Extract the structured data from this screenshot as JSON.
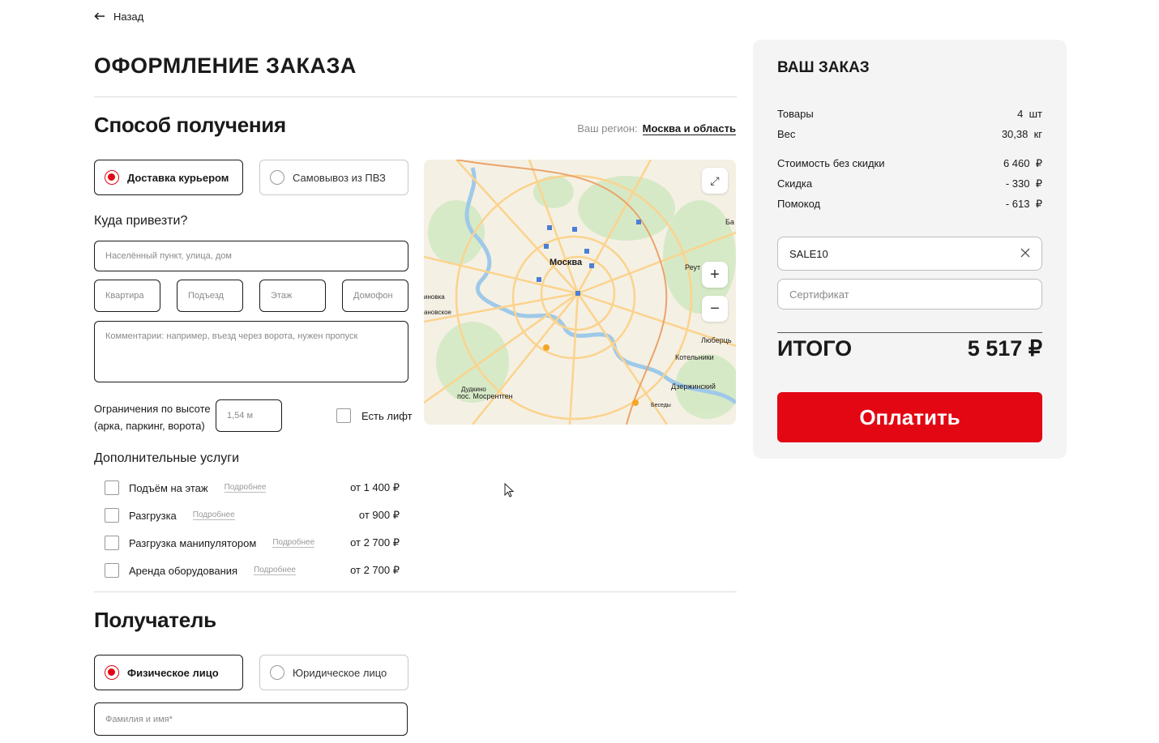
{
  "nav": {
    "back": "Назад"
  },
  "page_title": "ОФОРМЛЕНИЕ ЗАКАЗА",
  "delivery": {
    "heading": "Способ получения",
    "region_label": "Ваш регион:",
    "region_value": "Москва и область",
    "options": [
      {
        "label": "Доставка курьером",
        "selected": true
      },
      {
        "label": "Самовывоз из ПВЗ",
        "selected": false
      }
    ],
    "address_heading": "Куда привезти?",
    "address_placeholder": "Населённый пункт, улица, дом",
    "apartment_placeholder": "Квартира",
    "entrance_placeholder": "Подъезд",
    "floor_placeholder": "Этаж",
    "intercom_placeholder": "Домофон",
    "comment_placeholder": "Комментарии: например, въезд через ворота, нужен пропуск",
    "height_label_1": "Ограничения по высоте",
    "height_label_2": "(арка, паркинг, ворота)",
    "height_value": "1,54 м",
    "elevator_label": "Есть лифт"
  },
  "map": {
    "labels": {
      "city": "Москва",
      "reutov": "Реут",
      "lyubertsy": "Люберць",
      "kotelniki": "Котельники",
      "dzerzhinsky": "Дзержинский",
      "dudkino": "Дудкино",
      "mosrentgen": "пос. Мосрентген",
      "besedy": "Беседы",
      "novka": "иновка",
      "novskoe": "ановское",
      "ba": "Ба"
    },
    "zoom_in": "+",
    "zoom_out": "−"
  },
  "services": {
    "heading": "Дополнительные услуги",
    "items": [
      {
        "label": "Подъём на этаж",
        "more": "Подробнее",
        "price": "от 1 400 ₽"
      },
      {
        "label": "Разгрузка",
        "more": "Подробнее",
        "price": "от 900 ₽"
      },
      {
        "label": "Разгрузка манипулятором",
        "more": "Подробнее",
        "price": "от 2 700 ₽"
      },
      {
        "label": "Аренда оборудования",
        "more": "Подробнее",
        "price": "от 2 700 ₽"
      }
    ]
  },
  "recipient": {
    "heading": "Получатель",
    "options": [
      {
        "label": "Физическое лицо",
        "selected": true
      },
      {
        "label": "Юридическое лицо",
        "selected": false
      }
    ],
    "name_placeholder": "Фамилия и имя*"
  },
  "summary": {
    "title": "ВАШ ЗАКАЗ",
    "rows": [
      {
        "label": "Товары",
        "value": "4  шт"
      },
      {
        "label": "Вес",
        "value": "30,38  кг"
      },
      {
        "label": "Стоимость без скидки",
        "value": "6 460  ₽"
      },
      {
        "label": "Скидка",
        "value": "- 330  ₽"
      },
      {
        "label": "Помокод",
        "value": "- 613  ₽"
      }
    ],
    "promo_value": "SALE10",
    "certificate_placeholder": "Сертификат",
    "total_label": "ИТОГО",
    "total_value": "5 517 ₽",
    "pay_button": "Оплатить"
  },
  "colors": {
    "accent": "#e30613",
    "panel": "#f4f4f4"
  }
}
